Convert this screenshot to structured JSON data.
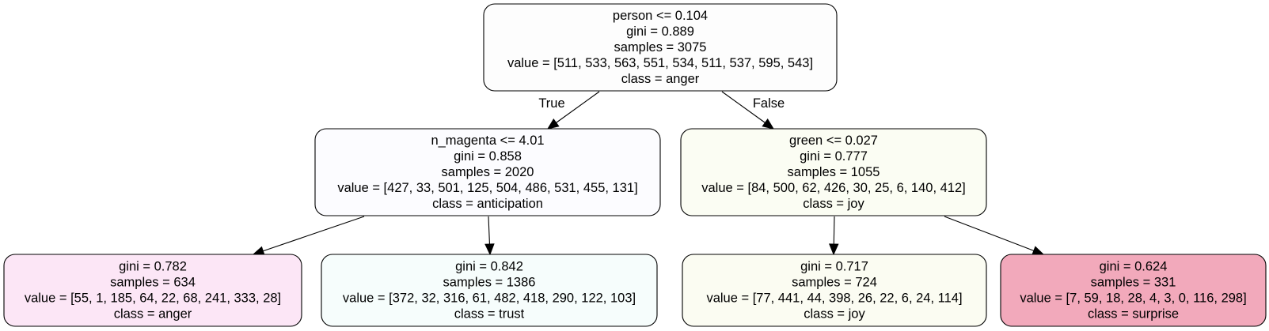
{
  "tree": {
    "nodes": [
      {
        "id": "n0",
        "fill": "#fdfdfd",
        "lines": [
          "person <= 0.104",
          "gini = 0.889",
          "samples = 3075",
          "value = [511, 533, 563, 551, 534, 511, 537, 595, 543]",
          "class = anger"
        ]
      },
      {
        "id": "n1",
        "fill": "#fcfcff",
        "lines": [
          "n_magenta <= 4.01",
          "gini = 0.858",
          "samples = 2020",
          "value = [427, 33, 501, 125, 504, 486, 531, 455, 131]",
          "class = anticipation"
        ]
      },
      {
        "id": "n2",
        "fill": "#fbfdf3",
        "lines": [
          "green <= 0.027",
          "gini = 0.777",
          "samples = 1055",
          "value = [84, 500, 62, 426, 30, 25, 6, 140, 412]",
          "class = joy"
        ]
      },
      {
        "id": "n3",
        "fill": "#fce6f6",
        "lines": [
          "gini = 0.782",
          "samples = 634",
          "value = [55, 1, 185, 64, 22, 68, 241, 333, 28]",
          "class = anger"
        ]
      },
      {
        "id": "n4",
        "fill": "#f6fdfc",
        "lines": [
          "gini = 0.842",
          "samples = 1386",
          "value = [372, 32, 316, 61, 482, 418, 290, 122, 103]",
          "class = trust"
        ]
      },
      {
        "id": "n5",
        "fill": "#fbfcf2",
        "lines": [
          "gini = 0.717",
          "samples = 724",
          "value = [77, 441, 44, 398, 26, 22, 6, 24, 114]",
          "class = joy"
        ]
      },
      {
        "id": "n6",
        "fill": "#f2a9bb",
        "lines": [
          "gini = 0.624",
          "samples = 331",
          "value = [7, 59, 18, 28, 4, 3, 0, 116, 298]",
          "class = surprise"
        ]
      }
    ],
    "edges": [
      {
        "from": "n0",
        "to": "n1",
        "label": "True"
      },
      {
        "from": "n0",
        "to": "n2",
        "label": "False"
      },
      {
        "from": "n1",
        "to": "n3",
        "label": ""
      },
      {
        "from": "n1",
        "to": "n4",
        "label": ""
      },
      {
        "from": "n2",
        "to": "n5",
        "label": ""
      },
      {
        "from": "n2",
        "to": "n6",
        "label": ""
      }
    ]
  }
}
